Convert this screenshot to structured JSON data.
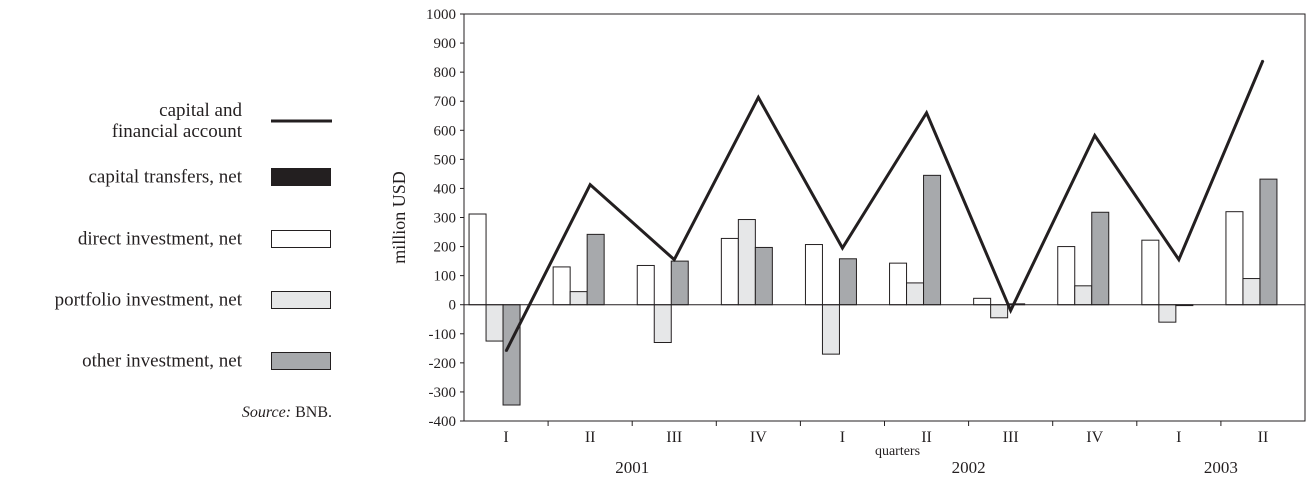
{
  "legend": {
    "capital": "capital and\nfinancial account",
    "transfers": "capital transfers, net",
    "direct": "direct investment, net",
    "portfolio": "portfolio investment, net",
    "other": "other investment, net",
    "source_prefix": "Source:",
    "source_value": "BNB."
  },
  "colors": {
    "line": "#231f20",
    "transfers": "#231f20",
    "direct": "#ffffff",
    "portfolio": "#e6e7e8",
    "other": "#a7a9ac",
    "zero_line": "#231f20"
  },
  "chart_data": {
    "type": "bar",
    "ylabel": "million USD",
    "xlabel": "quarters",
    "ylim": [
      -400,
      1000
    ],
    "yticks": [
      "1000",
      "900",
      "800",
      "700",
      "600",
      "500",
      "400",
      "300",
      "200",
      "100",
      "0",
      "-100",
      "-200",
      "-300",
      "-400"
    ],
    "categories": [
      "I",
      "II",
      "III",
      "IV",
      "I",
      "II",
      "III",
      "IV",
      "I",
      "II"
    ],
    "years": [
      "2001",
      "2002",
      "2003"
    ],
    "series": [
      {
        "name": "direct investment, net",
        "kind": "bar",
        "values": [
          312,
          130,
          135,
          228,
          207,
          143,
          22,
          200,
          222,
          320
        ]
      },
      {
        "name": "portfolio investment, net",
        "kind": "bar",
        "values": [
          -125,
          45,
          -130,
          293,
          -170,
          75,
          -45,
          65,
          -60,
          90
        ]
      },
      {
        "name": "other investment, net",
        "kind": "bar",
        "values": [
          -345,
          242,
          150,
          197,
          158,
          445,
          3,
          318,
          -3,
          432
        ]
      },
      {
        "name": "capital transfers, net",
        "kind": "bar",
        "values": [
          0,
          0,
          0,
          0,
          0,
          0,
          0,
          0,
          0,
          0
        ]
      },
      {
        "name": "capital and financial account",
        "kind": "line",
        "values": [
          -160,
          413,
          155,
          713,
          195,
          660,
          -20,
          582,
          155,
          840
        ]
      }
    ],
    "grid": false,
    "legend_position": "left"
  }
}
